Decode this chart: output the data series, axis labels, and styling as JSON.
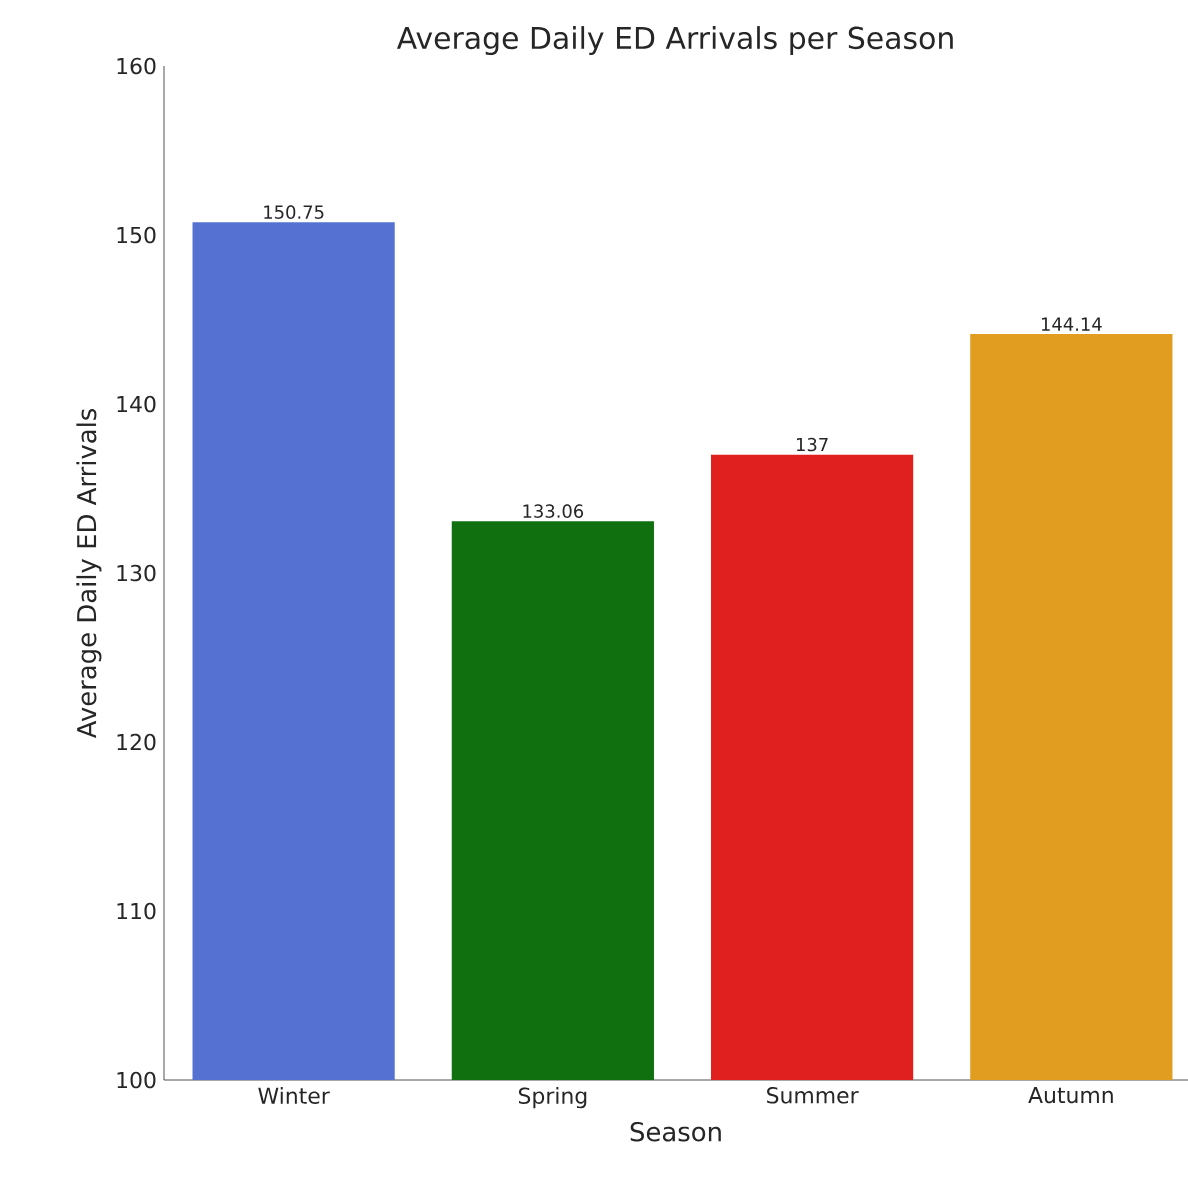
{
  "chart_data": {
    "type": "bar",
    "title": "Average Daily ED Arrivals per Season",
    "xlabel": "Season",
    "ylabel": "Average Daily ED Arrivals",
    "categories": [
      "Winter",
      "Spring",
      "Summer",
      "Autumn"
    ],
    "values": [
      150.75,
      133.06,
      137,
      144.14
    ],
    "colors": [
      "#5572d3",
      "#107010",
      "#e01f1f",
      "#e09d1f"
    ],
    "ylim": [
      100,
      160
    ],
    "yticks": [
      100,
      110,
      120,
      130,
      140,
      150,
      160
    ],
    "data_labels": true
  }
}
